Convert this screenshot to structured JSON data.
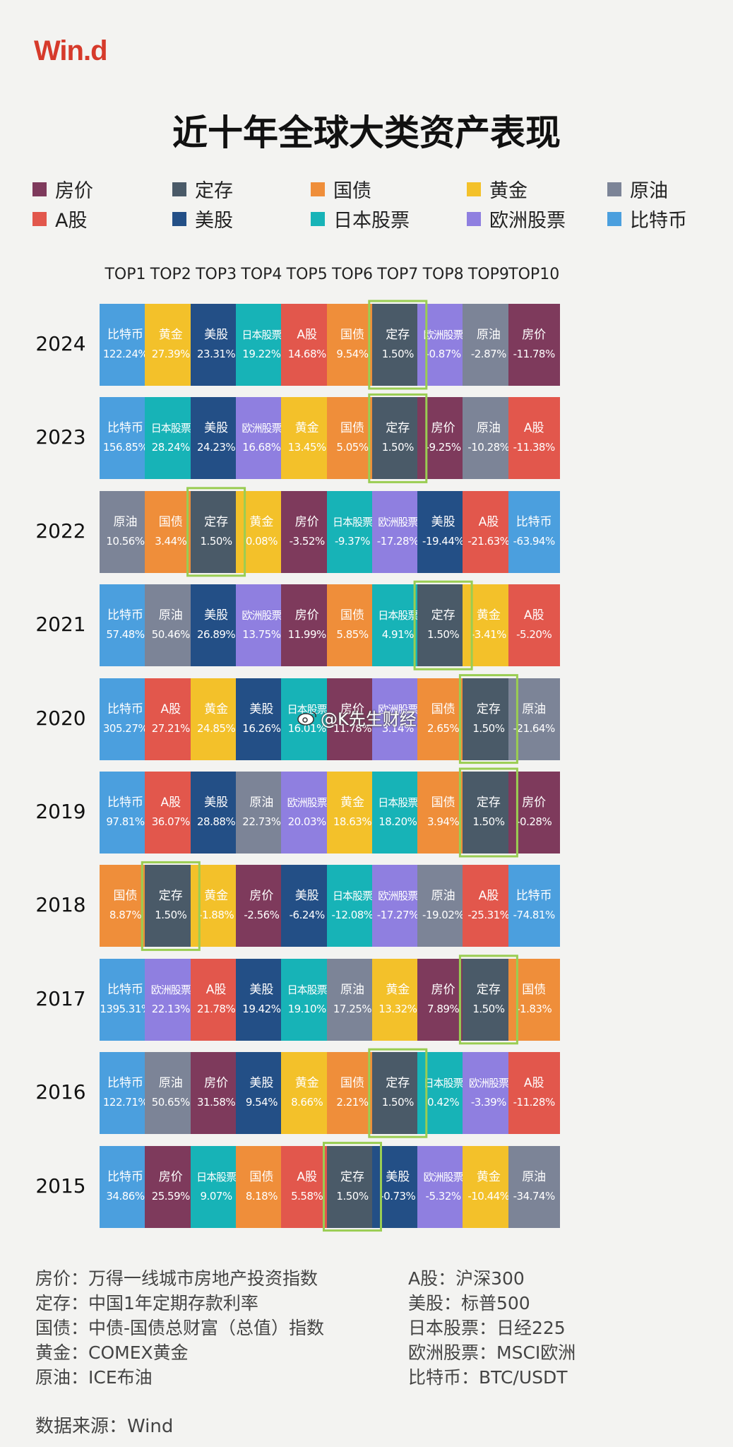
{
  "header": {
    "logo": "Win.d",
    "title": "近十年全球大类资产表现"
  },
  "legend": [
    {
      "name": "房价",
      "color": "#7e3a5c"
    },
    {
      "name": "定存",
      "color": "#4a5a68"
    },
    {
      "name": "国债",
      "color": "#ef8e3a"
    },
    {
      "name": "黄金",
      "color": "#f3c12a"
    },
    {
      "name": "原油",
      "color": "#7c8497"
    },
    {
      "name": "A股",
      "color": "#e2574c"
    },
    {
      "name": "美股",
      "color": "#234f86"
    },
    {
      "name": "日本股票",
      "color": "#17b3b7"
    },
    {
      "name": "欧洲股票",
      "color": "#8f7fe0"
    },
    {
      "name": "比特币",
      "color": "#4b9fde"
    }
  ],
  "chart_data": {
    "type": "table",
    "title": "近十年全球大类资产表现",
    "columns": [
      "TOP1",
      "TOP2",
      "TOP3",
      "TOP4",
      "TOP5",
      "TOP6",
      "TOP7",
      "TOP8",
      "TOP9",
      "TOP10"
    ],
    "rows": [
      {
        "year": "2024",
        "cells": [
          {
            "asset": "比特币",
            "value": "122.24%"
          },
          {
            "asset": "黄金",
            "value": "27.39%"
          },
          {
            "asset": "美股",
            "value": "23.31%"
          },
          {
            "asset": "日本股票",
            "value": "19.22%"
          },
          {
            "asset": "A股",
            "value": "14.68%"
          },
          {
            "asset": "国债",
            "value": "9.54%"
          },
          {
            "asset": "定存",
            "value": "1.50%"
          },
          {
            "asset": "欧洲股票",
            "value": "-0.87%"
          },
          {
            "asset": "原油",
            "value": "-2.87%"
          },
          {
            "asset": "房价",
            "value": "-11.78%"
          }
        ]
      },
      {
        "year": "2023",
        "cells": [
          {
            "asset": "比特币",
            "value": "156.85%"
          },
          {
            "asset": "日本股票",
            "value": "28.24%"
          },
          {
            "asset": "美股",
            "value": "24.23%"
          },
          {
            "asset": "欧洲股票",
            "value": "16.68%"
          },
          {
            "asset": "黄金",
            "value": "13.45%"
          },
          {
            "asset": "国债",
            "value": "5.05%"
          },
          {
            "asset": "定存",
            "value": "1.50%"
          },
          {
            "asset": "房价",
            "value": "-9.25%"
          },
          {
            "asset": "原油",
            "value": "-10.28%"
          },
          {
            "asset": "A股",
            "value": "-11.38%"
          }
        ]
      },
      {
        "year": "2022",
        "cells": [
          {
            "asset": "原油",
            "value": "10.56%"
          },
          {
            "asset": "国债",
            "value": "3.44%"
          },
          {
            "asset": "定存",
            "value": "1.50%"
          },
          {
            "asset": "黄金",
            "value": "0.08%"
          },
          {
            "asset": "房价",
            "value": "-3.52%"
          },
          {
            "asset": "日本股票",
            "value": "-9.37%"
          },
          {
            "asset": "欧洲股票",
            "value": "-17.28%"
          },
          {
            "asset": "美股",
            "value": "-19.44%"
          },
          {
            "asset": "A股",
            "value": "-21.63%"
          },
          {
            "asset": "比特币",
            "value": "-63.94%"
          }
        ]
      },
      {
        "year": "2021",
        "cells": [
          {
            "asset": "比特币",
            "value": "57.48%"
          },
          {
            "asset": "原油",
            "value": "50.46%"
          },
          {
            "asset": "美股",
            "value": "26.89%"
          },
          {
            "asset": "欧洲股票",
            "value": "13.75%"
          },
          {
            "asset": "房价",
            "value": "11.99%"
          },
          {
            "asset": "国债",
            "value": "5.85%"
          },
          {
            "asset": "日本股票",
            "value": "4.91%"
          },
          {
            "asset": "定存",
            "value": "1.50%"
          },
          {
            "asset": "黄金",
            "value": "-3.41%"
          },
          {
            "asset": "A股",
            "value": "-5.20%"
          }
        ]
      },
      {
        "year": "2020",
        "cells": [
          {
            "asset": "比特币",
            "value": "305.27%"
          },
          {
            "asset": "A股",
            "value": "27.21%"
          },
          {
            "asset": "黄金",
            "value": "24.85%"
          },
          {
            "asset": "美股",
            "value": "16.26%"
          },
          {
            "asset": "日本股票",
            "value": "16.01%"
          },
          {
            "asset": "房价",
            "value": "11.78%"
          },
          {
            "asset": "欧洲股票",
            "value": "3.14%"
          },
          {
            "asset": "国债",
            "value": "2.65%"
          },
          {
            "asset": "定存",
            "value": "1.50%"
          },
          {
            "asset": "原油",
            "value": "-21.64%"
          }
        ]
      },
      {
        "year": "2019",
        "cells": [
          {
            "asset": "比特币",
            "value": "97.81%"
          },
          {
            "asset": "A股",
            "value": "36.07%"
          },
          {
            "asset": "美股",
            "value": "28.88%"
          },
          {
            "asset": "原油",
            "value": "22.73%"
          },
          {
            "asset": "欧洲股票",
            "value": "20.03%"
          },
          {
            "asset": "黄金",
            "value": "18.63%"
          },
          {
            "asset": "日本股票",
            "value": "18.20%"
          },
          {
            "asset": "国债",
            "value": "3.94%"
          },
          {
            "asset": "定存",
            "value": "1.50%"
          },
          {
            "asset": "房价",
            "value": "-0.28%"
          }
        ]
      },
      {
        "year": "2018",
        "cells": [
          {
            "asset": "国债",
            "value": "8.87%"
          },
          {
            "asset": "定存",
            "value": "1.50%"
          },
          {
            "asset": "黄金",
            "value": "-1.88%"
          },
          {
            "asset": "房价",
            "value": "-2.56%"
          },
          {
            "asset": "美股",
            "value": "-6.24%"
          },
          {
            "asset": "日本股票",
            "value": "-12.08%"
          },
          {
            "asset": "欧洲股票",
            "value": "-17.27%"
          },
          {
            "asset": "原油",
            "value": "-19.02%"
          },
          {
            "asset": "A股",
            "value": "-25.31%"
          },
          {
            "asset": "比特币",
            "value": "-74.81%"
          }
        ]
      },
      {
        "year": "2017",
        "cells": [
          {
            "asset": "比特币",
            "value": "1395.31%"
          },
          {
            "asset": "欧洲股票",
            "value": "22.13%"
          },
          {
            "asset": "A股",
            "value": "21.78%"
          },
          {
            "asset": "美股",
            "value": "19.42%"
          },
          {
            "asset": "日本股票",
            "value": "19.10%"
          },
          {
            "asset": "原油",
            "value": "17.25%"
          },
          {
            "asset": "黄金",
            "value": "13.32%"
          },
          {
            "asset": "房价",
            "value": "7.89%"
          },
          {
            "asset": "定存",
            "value": "1.50%"
          },
          {
            "asset": "国债",
            "value": "-1.83%"
          }
        ]
      },
      {
        "year": "2016",
        "cells": [
          {
            "asset": "比特币",
            "value": "122.71%"
          },
          {
            "asset": "原油",
            "value": "50.65%"
          },
          {
            "asset": "房价",
            "value": "31.58%"
          },
          {
            "asset": "美股",
            "value": "9.54%"
          },
          {
            "asset": "黄金",
            "value": "8.66%"
          },
          {
            "asset": "国债",
            "value": "2.21%"
          },
          {
            "asset": "定存",
            "value": "1.50%"
          },
          {
            "asset": "日本股票",
            "value": "0.42%"
          },
          {
            "asset": "欧洲股票",
            "value": "-3.39%"
          },
          {
            "asset": "A股",
            "value": "-11.28%"
          }
        ]
      },
      {
        "year": "2015",
        "cells": [
          {
            "asset": "比特币",
            "value": "34.86%"
          },
          {
            "asset": "房价",
            "value": "25.59%"
          },
          {
            "asset": "日本股票",
            "value": "9.07%"
          },
          {
            "asset": "国债",
            "value": "8.18%"
          },
          {
            "asset": "A股",
            "value": "5.58%"
          },
          {
            "asset": "定存",
            "value": "1.50%"
          },
          {
            "asset": "美股",
            "value": "-0.73%"
          },
          {
            "asset": "欧洲股票",
            "value": "-5.32%"
          },
          {
            "asset": "黄金",
            "value": "-10.44%"
          },
          {
            "asset": "原油",
            "value": "-34.74%"
          }
        ]
      }
    ]
  },
  "notes": {
    "left": [
      "房价：万得一线城市房地产投资指数",
      "定存：中国1年定期存款利率",
      "国债：中债-国债总财富（总值）指数",
      "黄金：COMEX黄金",
      "原油：ICE布油"
    ],
    "right": [
      "A股：沪深300",
      "美股：标普500",
      "日本股票：日经225",
      "欧洲股票：MSCI欧洲",
      "比特币：BTC/USDT"
    ]
  },
  "source": "数据来源：Wind",
  "watermark": {
    "text": "@K先生财经",
    "icon": "weibo-icon"
  }
}
